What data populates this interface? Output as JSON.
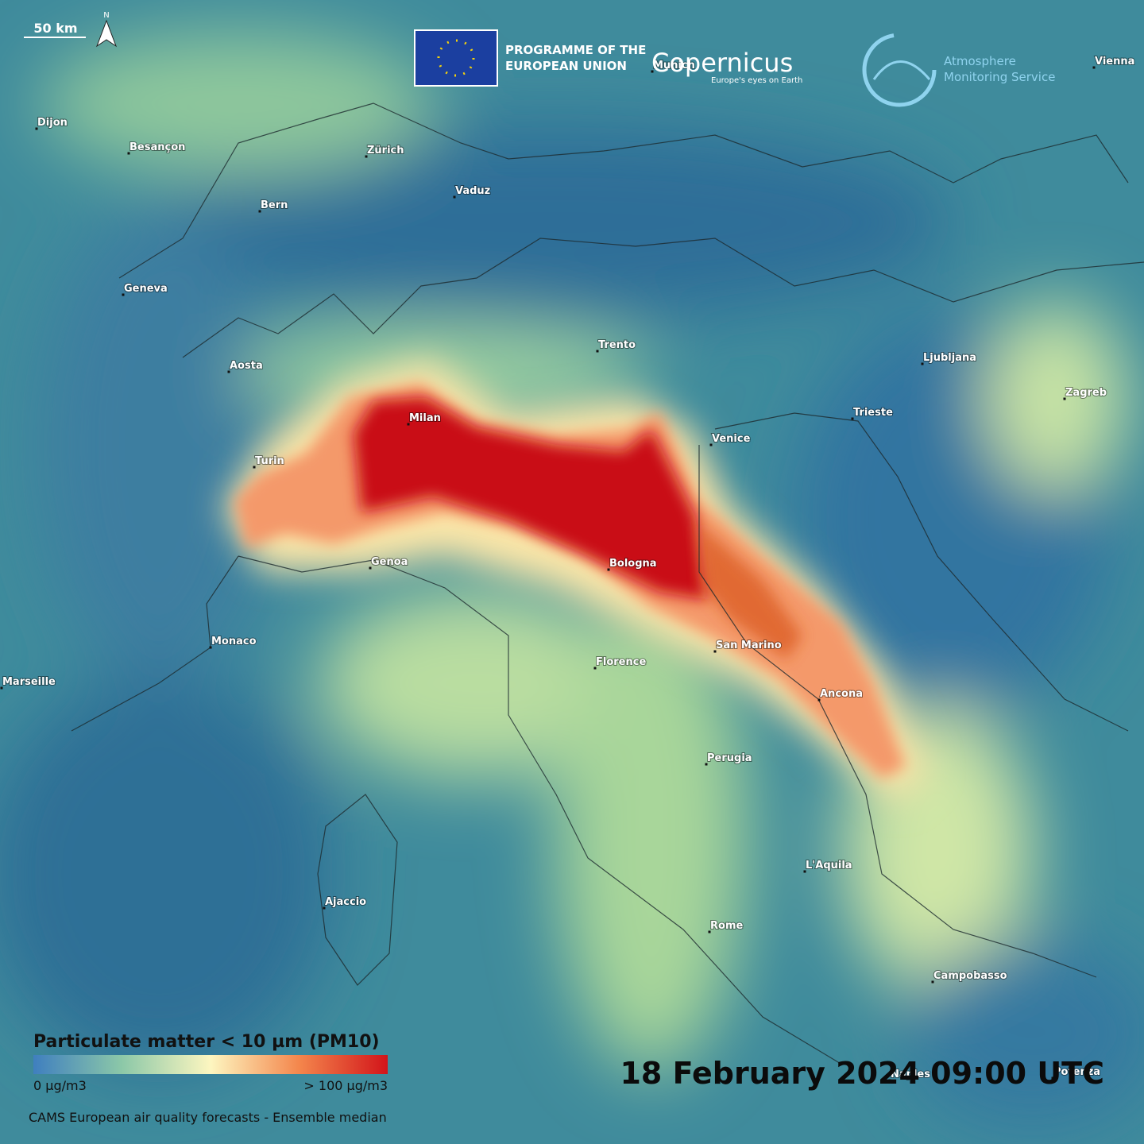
{
  "header": {
    "scale": "50 km",
    "north": "N",
    "eu_line1": "PROGRAMME OF THE",
    "eu_line2": "EUROPEAN UNION",
    "copernicus": "Copernicus",
    "copernicus_tagline": "Europe's eyes on Earth",
    "service_line1": "Atmosphere",
    "service_line2": "Monitoring Service"
  },
  "cities": [
    "Dijon",
    "Besançon",
    "Zürich",
    "Vaduz",
    "Bern",
    "Geneva",
    "Aosta",
    "Trento",
    "Ljubljana",
    "Zagreb",
    "Trieste",
    "Venice",
    "Milan",
    "Turin",
    "Genoa",
    "Bologna",
    "Monaco",
    "Marseille",
    "Florence",
    "San Marino",
    "Ancona",
    "Perugia",
    "L'Aquila",
    "Ajaccio",
    "Rome",
    "Campobasso",
    "Naples",
    "Munich",
    "Vienna",
    "Potenza"
  ],
  "legend": {
    "title": "Particulate matter < 10 µm (PM10)",
    "min": "0 µg/m3",
    "max": "> 100 µg/m3"
  },
  "source": "CAMS European air quality forecasts - Ensemble median",
  "timestamp": "18 February 2024 09:00 UTC"
}
